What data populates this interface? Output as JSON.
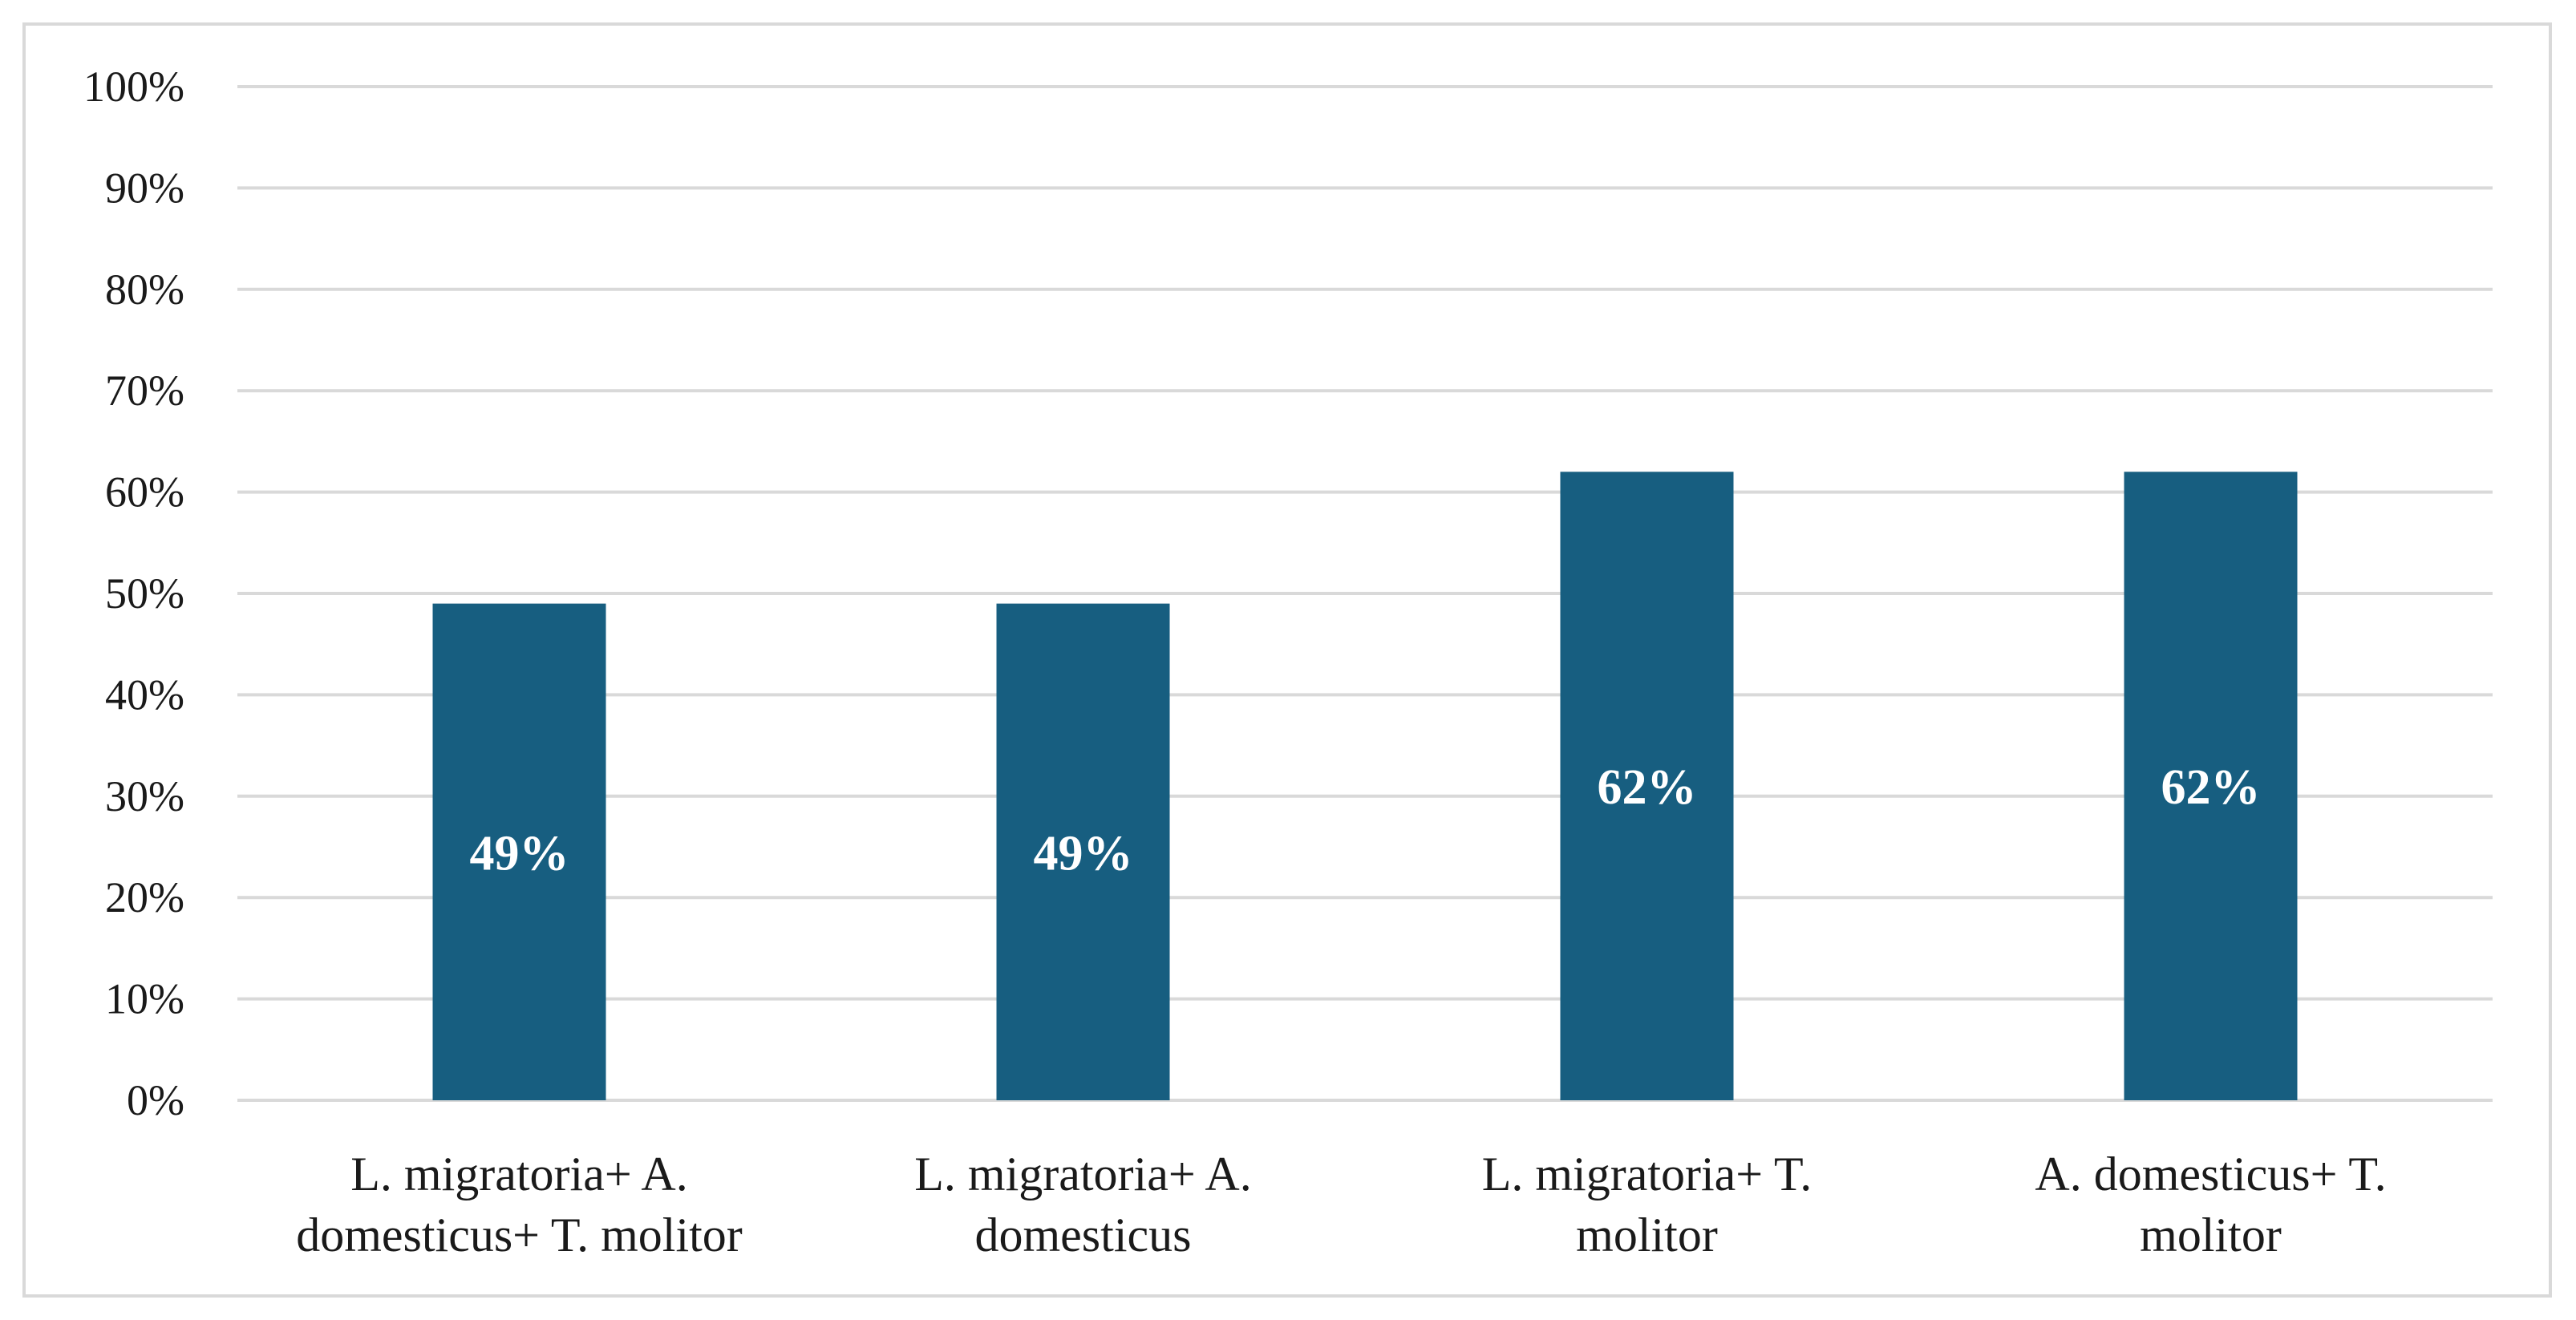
{
  "chart_data": {
    "type": "bar",
    "title": "",
    "xlabel": "",
    "ylabel": "",
    "ylim": [
      0,
      100
    ],
    "yticks": [
      0,
      10,
      20,
      30,
      40,
      50,
      60,
      70,
      80,
      90,
      100
    ],
    "ytick_labels": [
      "0%",
      "10%",
      "20%",
      "30%",
      "40%",
      "50%",
      "60%",
      "70%",
      "80%",
      "90%",
      "100%"
    ],
    "grid": true,
    "legend": "none",
    "categories": [
      [
        "L. migratoria+ A.",
        "domesticus+ T. molitor"
      ],
      [
        "L. migratoria+ A.",
        "domesticus"
      ],
      [
        "L. migratoria+ T.",
        "molitor"
      ],
      [
        "A. domesticus+ T.",
        "molitor"
      ]
    ],
    "values": [
      49,
      49,
      62,
      62
    ],
    "data_labels": [
      "49%",
      "49%",
      "62%",
      "62%"
    ],
    "bar_color": "#175e80",
    "grid_color": "#d9d9d9"
  }
}
